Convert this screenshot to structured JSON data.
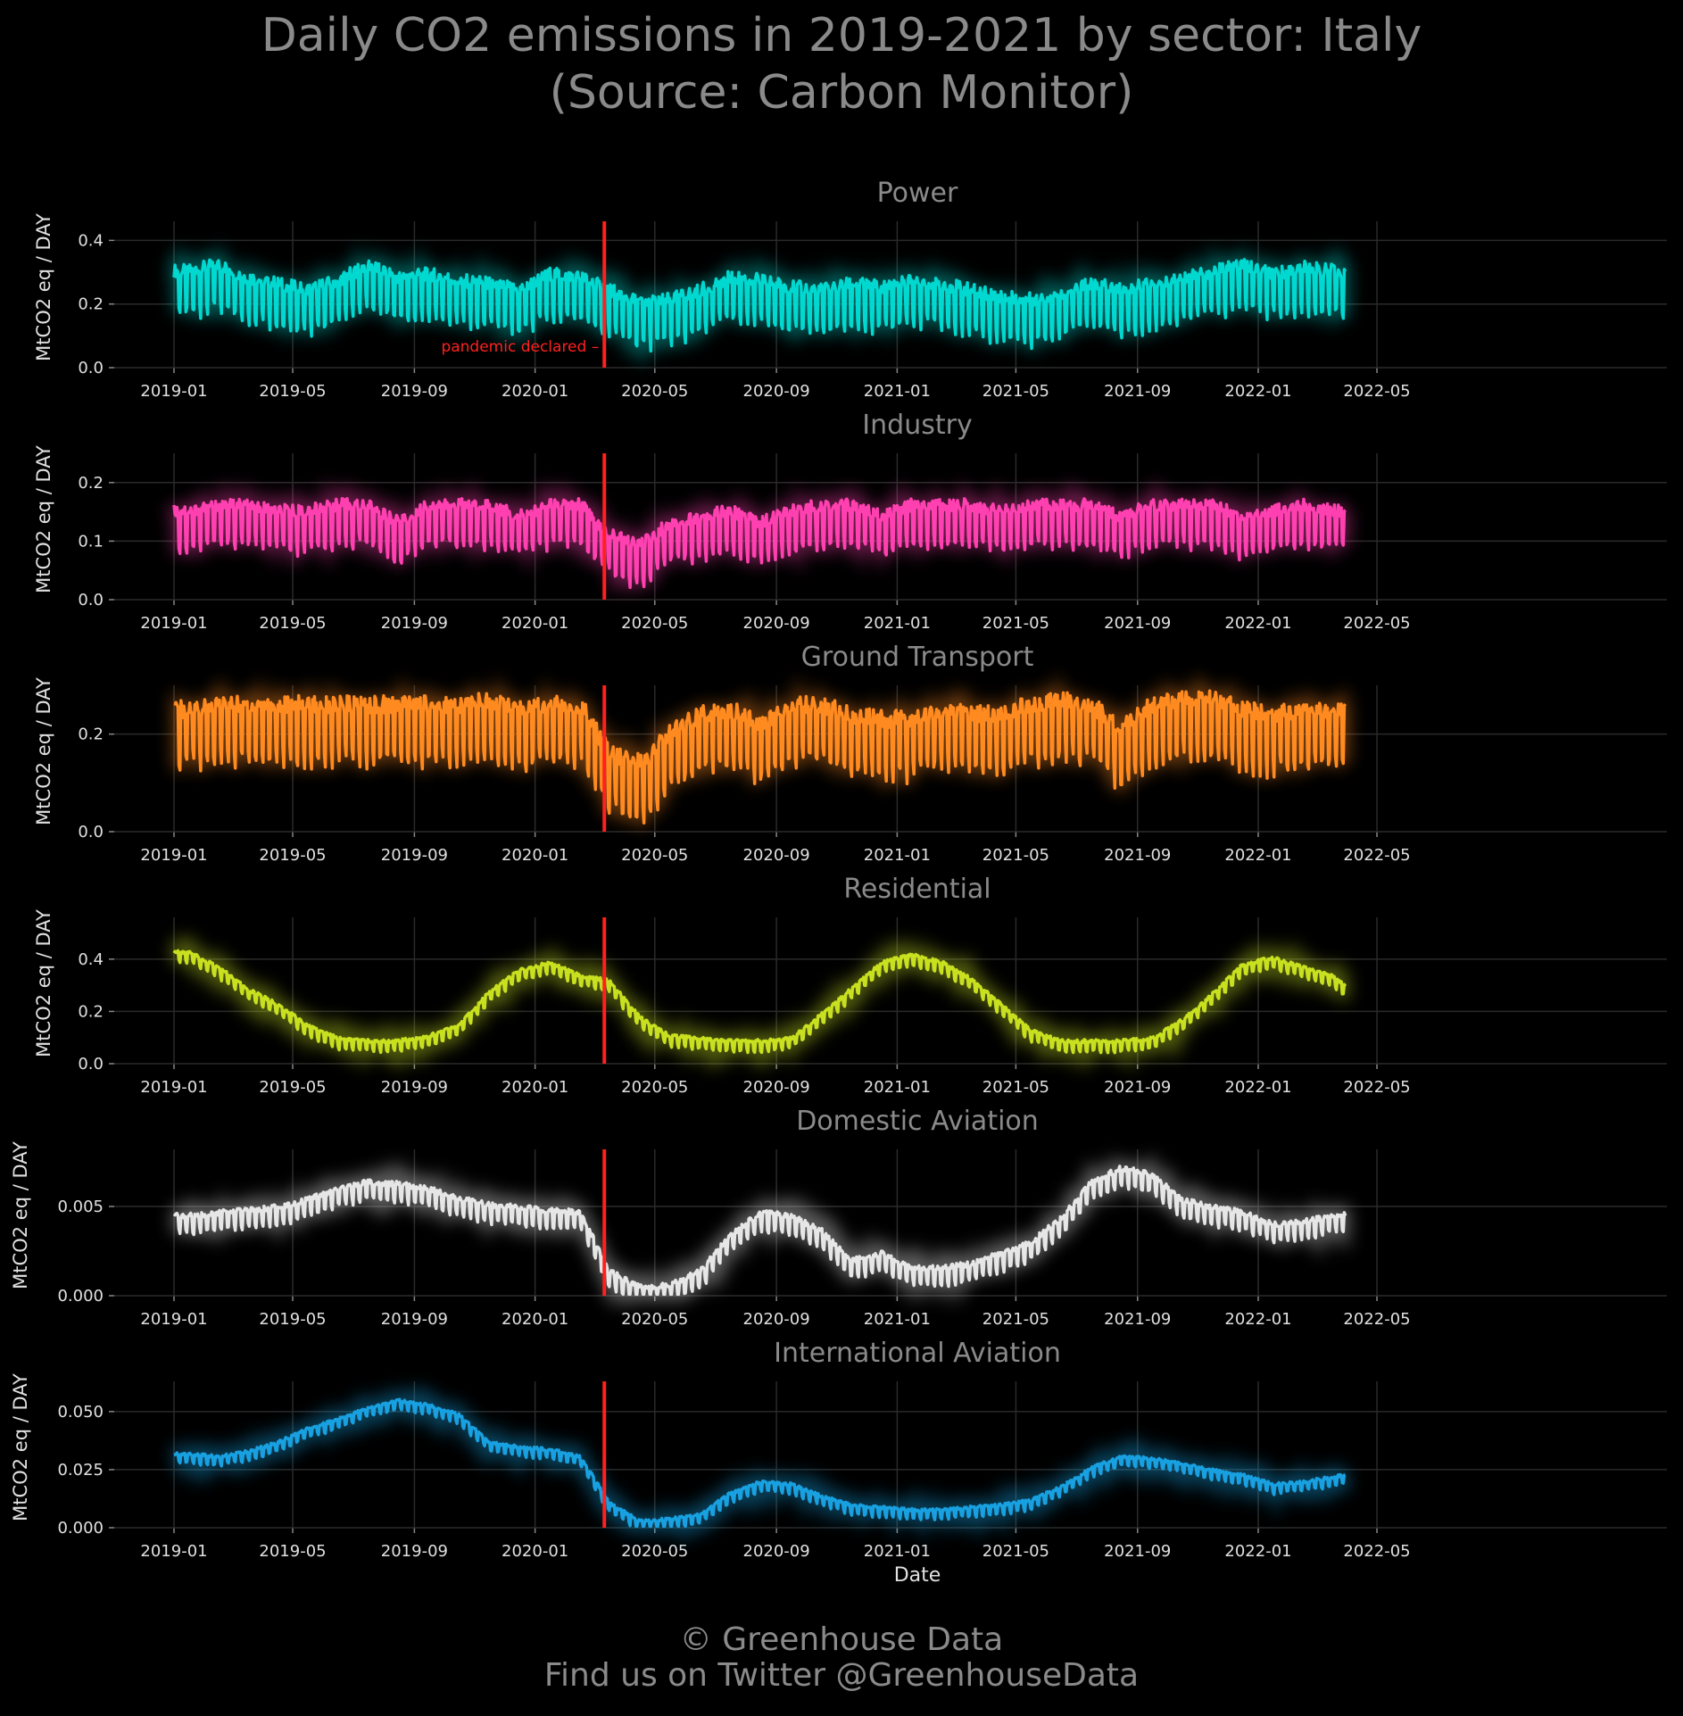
{
  "title_line1": "Daily CO2 emissions in 2019-2021 by sector: Italy",
  "title_line2": "(Source: Carbon Monitor)",
  "footer_line1": "© Greenhouse Data",
  "footer_line2": "Find us on Twitter @GreenhouseData",
  "annotation": {
    "label": "pandemic declared",
    "date": "2020-03-11",
    "color": "#ff2020"
  },
  "chart_data": [
    {
      "type": "line",
      "title": "Power",
      "ylabel": "MtCO2 eq / DAY",
      "xlabel": "",
      "color": "#00d8d0",
      "ylim": [
        0,
        0.46
      ],
      "yticks": [
        "0.0",
        "0.2",
        "0.4"
      ],
      "xticks": [
        "2019-01",
        "2019-05",
        "2019-09",
        "2020-01",
        "2020-05",
        "2020-09",
        "2021-01",
        "2021-05",
        "2021-09",
        "2022-01",
        "2022-05"
      ],
      "monthly": [
        [
          "2019-01",
          0.28
        ],
        [
          "2019-02",
          0.3
        ],
        [
          "2019-03",
          0.26
        ],
        [
          "2019-04",
          0.24
        ],
        [
          "2019-05",
          0.22
        ],
        [
          "2019-06",
          0.25
        ],
        [
          "2019-07",
          0.3
        ],
        [
          "2019-08",
          0.26
        ],
        [
          "2019-09",
          0.27
        ],
        [
          "2019-10",
          0.25
        ],
        [
          "2019-11",
          0.24
        ],
        [
          "2019-12",
          0.22
        ],
        [
          "2020-01",
          0.27
        ],
        [
          "2020-02",
          0.26
        ],
        [
          "2020-03",
          0.22
        ],
        [
          "2020-04",
          0.18
        ],
        [
          "2020-05",
          0.19
        ],
        [
          "2020-06",
          0.22
        ],
        [
          "2020-07",
          0.26
        ],
        [
          "2020-08",
          0.25
        ],
        [
          "2020-09",
          0.23
        ],
        [
          "2020-10",
          0.22
        ],
        [
          "2020-11",
          0.24
        ],
        [
          "2020-12",
          0.23
        ],
        [
          "2021-01",
          0.25
        ],
        [
          "2021-02",
          0.24
        ],
        [
          "2021-03",
          0.22
        ],
        [
          "2021-04",
          0.2
        ],
        [
          "2021-05",
          0.19
        ],
        [
          "2021-06",
          0.21
        ],
        [
          "2021-07",
          0.24
        ],
        [
          "2021-08",
          0.22
        ],
        [
          "2021-09",
          0.24
        ],
        [
          "2021-10",
          0.26
        ],
        [
          "2021-11",
          0.28
        ],
        [
          "2021-12",
          0.3
        ],
        [
          "2022-01",
          0.27
        ],
        [
          "2022-02",
          0.29
        ],
        [
          "2022-03",
          0.28
        ],
        [
          "2022-04",
          0.27
        ]
      ],
      "weekly_amplitude": 0.07
    },
    {
      "type": "line",
      "title": "Industry",
      "ylabel": "MtCO2 eq / DAY",
      "xlabel": "",
      "color": "#ff40b0",
      "ylim": [
        0,
        0.25
      ],
      "yticks": [
        "0.0",
        "0.1",
        "0.2"
      ],
      "xticks": [
        "2019-01",
        "2019-05",
        "2019-09",
        "2020-01",
        "2020-05",
        "2020-09",
        "2021-01",
        "2021-05",
        "2021-09",
        "2022-01",
        "2022-05"
      ],
      "monthly": [
        [
          "2019-01",
          0.14
        ],
        [
          "2019-02",
          0.15
        ],
        [
          "2019-03",
          0.15
        ],
        [
          "2019-04",
          0.14
        ],
        [
          "2019-05",
          0.14
        ],
        [
          "2019-06",
          0.15
        ],
        [
          "2019-07",
          0.15
        ],
        [
          "2019-08",
          0.12
        ],
        [
          "2019-09",
          0.15
        ],
        [
          "2019-10",
          0.15
        ],
        [
          "2019-11",
          0.15
        ],
        [
          "2019-12",
          0.13
        ],
        [
          "2020-01",
          0.15
        ],
        [
          "2020-02",
          0.15
        ],
        [
          "2020-03",
          0.1
        ],
        [
          "2020-04",
          0.08
        ],
        [
          "2020-05",
          0.12
        ],
        [
          "2020-06",
          0.13
        ],
        [
          "2020-07",
          0.14
        ],
        [
          "2020-08",
          0.12
        ],
        [
          "2020-09",
          0.14
        ],
        [
          "2020-10",
          0.15
        ],
        [
          "2020-11",
          0.15
        ],
        [
          "2020-12",
          0.13
        ],
        [
          "2021-01",
          0.15
        ],
        [
          "2021-02",
          0.15
        ],
        [
          "2021-03",
          0.15
        ],
        [
          "2021-04",
          0.14
        ],
        [
          "2021-05",
          0.15
        ],
        [
          "2021-06",
          0.15
        ],
        [
          "2021-07",
          0.15
        ],
        [
          "2021-08",
          0.13
        ],
        [
          "2021-09",
          0.15
        ],
        [
          "2021-10",
          0.15
        ],
        [
          "2021-11",
          0.15
        ],
        [
          "2021-12",
          0.13
        ],
        [
          "2022-01",
          0.14
        ],
        [
          "2022-02",
          0.15
        ],
        [
          "2022-03",
          0.14
        ],
        [
          "2022-04",
          0.14
        ]
      ],
      "weekly_amplitude": 0.035
    },
    {
      "type": "line",
      "title": "Ground Transport",
      "ylabel": "MtCO2 eq / DAY",
      "xlabel": "",
      "color": "#ff8a20",
      "ylim": [
        0,
        0.3
      ],
      "yticks": [
        "0.0",
        "0.2"
      ],
      "xticks": [
        "2019-01",
        "2019-05",
        "2019-09",
        "2020-01",
        "2020-05",
        "2020-09",
        "2021-01",
        "2021-05",
        "2021-09",
        "2022-01",
        "2022-05"
      ],
      "monthly": [
        [
          "2019-01",
          0.23
        ],
        [
          "2019-02",
          0.24
        ],
        [
          "2019-03",
          0.24
        ],
        [
          "2019-04",
          0.24
        ],
        [
          "2019-05",
          0.24
        ],
        [
          "2019-06",
          0.24
        ],
        [
          "2019-07",
          0.24
        ],
        [
          "2019-08",
          0.24
        ],
        [
          "2019-09",
          0.24
        ],
        [
          "2019-10",
          0.24
        ],
        [
          "2019-11",
          0.25
        ],
        [
          "2019-12",
          0.23
        ],
        [
          "2020-01",
          0.24
        ],
        [
          "2020-02",
          0.24
        ],
        [
          "2020-03",
          0.14
        ],
        [
          "2020-04",
          0.12
        ],
        [
          "2020-05",
          0.18
        ],
        [
          "2020-06",
          0.22
        ],
        [
          "2020-07",
          0.23
        ],
        [
          "2020-08",
          0.2
        ],
        [
          "2020-09",
          0.24
        ],
        [
          "2020-10",
          0.24
        ],
        [
          "2020-11",
          0.22
        ],
        [
          "2020-12",
          0.21
        ],
        [
          "2021-01",
          0.21
        ],
        [
          "2021-02",
          0.23
        ],
        [
          "2021-03",
          0.22
        ],
        [
          "2021-04",
          0.22
        ],
        [
          "2021-05",
          0.24
        ],
        [
          "2021-06",
          0.25
        ],
        [
          "2021-07",
          0.24
        ],
        [
          "2021-08",
          0.19
        ],
        [
          "2021-09",
          0.24
        ],
        [
          "2021-10",
          0.25
        ],
        [
          "2021-11",
          0.25
        ],
        [
          "2021-12",
          0.23
        ],
        [
          "2022-01",
          0.22
        ],
        [
          "2022-02",
          0.23
        ],
        [
          "2022-03",
          0.23
        ],
        [
          "2022-04",
          0.23
        ]
      ],
      "weekly_amplitude": 0.06
    },
    {
      "type": "line",
      "title": "Residential",
      "ylabel": "MtCO2 eq / DAY",
      "xlabel": "",
      "color": "#c8e020",
      "ylim": [
        0,
        0.56
      ],
      "yticks": [
        "0.0",
        "0.2",
        "0.4"
      ],
      "xticks": [
        "2019-01",
        "2019-05",
        "2019-09",
        "2020-01",
        "2020-05",
        "2020-09",
        "2021-01",
        "2021-05",
        "2021-09",
        "2022-01",
        "2022-05"
      ],
      "monthly": [
        [
          "2019-01",
          0.42
        ],
        [
          "2019-02",
          0.36
        ],
        [
          "2019-03",
          0.28
        ],
        [
          "2019-04",
          0.22
        ],
        [
          "2019-05",
          0.14
        ],
        [
          "2019-06",
          0.09
        ],
        [
          "2019-07",
          0.08
        ],
        [
          "2019-08",
          0.08
        ],
        [
          "2019-09",
          0.1
        ],
        [
          "2019-10",
          0.14
        ],
        [
          "2019-11",
          0.27
        ],
        [
          "2019-12",
          0.35
        ],
        [
          "2020-01",
          0.38
        ],
        [
          "2020-02",
          0.33
        ],
        [
          "2020-03",
          0.31
        ],
        [
          "2020-04",
          0.17
        ],
        [
          "2020-05",
          0.1
        ],
        [
          "2020-06",
          0.09
        ],
        [
          "2020-07",
          0.08
        ],
        [
          "2020-08",
          0.08
        ],
        [
          "2020-09",
          0.09
        ],
        [
          "2020-10",
          0.18
        ],
        [
          "2020-11",
          0.28
        ],
        [
          "2020-12",
          0.38
        ],
        [
          "2021-01",
          0.41
        ],
        [
          "2021-02",
          0.38
        ],
        [
          "2021-03",
          0.32
        ],
        [
          "2021-04",
          0.22
        ],
        [
          "2021-05",
          0.12
        ],
        [
          "2021-06",
          0.08
        ],
        [
          "2021-07",
          0.08
        ],
        [
          "2021-08",
          0.08
        ],
        [
          "2021-09",
          0.09
        ],
        [
          "2021-10",
          0.16
        ],
        [
          "2021-11",
          0.26
        ],
        [
          "2021-12",
          0.37
        ],
        [
          "2022-01",
          0.4
        ],
        [
          "2022-02",
          0.36
        ],
        [
          "2022-03",
          0.33
        ],
        [
          "2022-04",
          0.24
        ]
      ],
      "weekly_amplitude": 0.02
    },
    {
      "type": "line",
      "title": "Domestic Aviation",
      "ylabel": "MtCO2 eq / DAY",
      "xlabel": "",
      "color": "#e6e6e6",
      "ylim": [
        0,
        0.0082
      ],
      "yticks": [
        "0.000",
        "0.005"
      ],
      "xticks": [
        "2019-01",
        "2019-05",
        "2019-09",
        "2020-01",
        "2020-05",
        "2020-09",
        "2021-01",
        "2021-05",
        "2021-09",
        "2022-01",
        "2022-05"
      ],
      "monthly": [
        [
          "2019-01",
          0.0043
        ],
        [
          "2019-02",
          0.0045
        ],
        [
          "2019-03",
          0.0046
        ],
        [
          "2019-04",
          0.0048
        ],
        [
          "2019-05",
          0.0052
        ],
        [
          "2019-06",
          0.0058
        ],
        [
          "2019-07",
          0.0062
        ],
        [
          "2019-08",
          0.0061
        ],
        [
          "2019-09",
          0.0058
        ],
        [
          "2019-10",
          0.0053
        ],
        [
          "2019-11",
          0.0049
        ],
        [
          "2019-12",
          0.0048
        ],
        [
          "2020-01",
          0.0046
        ],
        [
          "2020-02",
          0.0045
        ],
        [
          "2020-03",
          0.0012
        ],
        [
          "2020-04",
          0.0003
        ],
        [
          "2020-05",
          0.0004
        ],
        [
          "2020-06",
          0.0012
        ],
        [
          "2020-07",
          0.0032
        ],
        [
          "2020-08",
          0.0045
        ],
        [
          "2020-09",
          0.0043
        ],
        [
          "2020-10",
          0.0035
        ],
        [
          "2020-11",
          0.0018
        ],
        [
          "2020-12",
          0.0022
        ],
        [
          "2021-01",
          0.0014
        ],
        [
          "2021-02",
          0.0014
        ],
        [
          "2021-03",
          0.0016
        ],
        [
          "2021-04",
          0.0022
        ],
        [
          "2021-05",
          0.0028
        ],
        [
          "2021-06",
          0.0042
        ],
        [
          "2021-07",
          0.0062
        ],
        [
          "2021-08",
          0.007
        ],
        [
          "2021-09",
          0.0066
        ],
        [
          "2021-10",
          0.0052
        ],
        [
          "2021-11",
          0.0048
        ],
        [
          "2021-12",
          0.0045
        ],
        [
          "2022-01",
          0.0038
        ],
        [
          "2022-02",
          0.004
        ],
        [
          "2022-03",
          0.0043
        ],
        [
          "2022-04",
          0.0045
        ]
      ],
      "weekly_amplitude": 0.0005
    },
    {
      "type": "line",
      "title": "International Aviation",
      "ylabel": "MtCO2 eq / DAY",
      "xlabel": "Date",
      "color": "#18a0e0",
      "ylim": [
        0,
        0.063
      ],
      "yticks": [
        "0.000",
        "0.025",
        "0.050"
      ],
      "xticks": [
        "2019-01",
        "2019-05",
        "2019-09",
        "2020-01",
        "2020-05",
        "2020-09",
        "2021-01",
        "2021-05",
        "2021-09",
        "2022-01",
        "2022-05"
      ],
      "monthly": [
        [
          "2019-01",
          0.031
        ],
        [
          "2019-02",
          0.03
        ],
        [
          "2019-03",
          0.032
        ],
        [
          "2019-04",
          0.036
        ],
        [
          "2019-05",
          0.042
        ],
        [
          "2019-06",
          0.046
        ],
        [
          "2019-07",
          0.051
        ],
        [
          "2019-08",
          0.054
        ],
        [
          "2019-09",
          0.052
        ],
        [
          "2019-10",
          0.048
        ],
        [
          "2019-11",
          0.036
        ],
        [
          "2019-12",
          0.034
        ],
        [
          "2020-01",
          0.033
        ],
        [
          "2020-02",
          0.03
        ],
        [
          "2020-03",
          0.01
        ],
        [
          "2020-04",
          0.002
        ],
        [
          "2020-05",
          0.003
        ],
        [
          "2020-06",
          0.005
        ],
        [
          "2020-07",
          0.014
        ],
        [
          "2020-08",
          0.019
        ],
        [
          "2020-09",
          0.018
        ],
        [
          "2020-10",
          0.013
        ],
        [
          "2020-11",
          0.009
        ],
        [
          "2020-12",
          0.008
        ],
        [
          "2021-01",
          0.007
        ],
        [
          "2021-02",
          0.007
        ],
        [
          "2021-03",
          0.008
        ],
        [
          "2021-04",
          0.009
        ],
        [
          "2021-05",
          0.011
        ],
        [
          "2021-06",
          0.017
        ],
        [
          "2021-07",
          0.025
        ],
        [
          "2021-08",
          0.03
        ],
        [
          "2021-09",
          0.029
        ],
        [
          "2021-10",
          0.027
        ],
        [
          "2021-11",
          0.024
        ],
        [
          "2021-12",
          0.022
        ],
        [
          "2022-01",
          0.018
        ],
        [
          "2022-02",
          0.019
        ],
        [
          "2022-03",
          0.021
        ],
        [
          "2022-04",
          0.024
        ]
      ],
      "weekly_amplitude": 0.002
    }
  ]
}
